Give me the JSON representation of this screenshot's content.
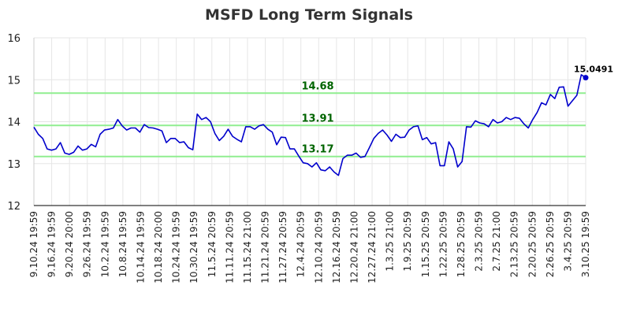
{
  "chart_data": {
    "type": "line",
    "title": "MSFD Long Term Signals",
    "ylim": [
      12,
      16
    ],
    "y_ticks": [
      "12",
      "13",
      "14",
      "15",
      "16"
    ],
    "x_tick_labels": [
      "9.10.24 19:59",
      "9.16.24 19:59",
      "9.20.24 20:00",
      "9.26.24 19:59",
      "10.2.24 19:59",
      "10.8.24 19:59",
      "10.14.24 19:59",
      "10.18.24 20:00",
      "10.24.24 19:59",
      "10.30.24 19:59",
      "11.5.24 20:59",
      "11.11.24 20:59",
      "11.15.24 21:00",
      "11.21.24 20:59",
      "11.27.24 20:59",
      "12.4.24 20:59",
      "12.10.24 20:59",
      "12.16.24 20:59",
      "12.20.24 21:00",
      "12.27.24 21:00",
      "1.3.25 21:00",
      "1.9.25 20:59",
      "1.15.25 20:59",
      "1.22.25 20:59",
      "1.28.25 20:59",
      "2.3.25 20:59",
      "2.7.25 21:00",
      "2.13.25 20:59",
      "2.20.25 20:59",
      "2.26.25 20:59",
      "3.4.25 20:59",
      "3.10.25 19:59"
    ],
    "grid": true,
    "line_color": "#0000cc",
    "signal_color": "#90ee90",
    "signal_label_color": "#006400",
    "signals": [
      {
        "value": 14.68,
        "label": "14.68"
      },
      {
        "value": 13.91,
        "label": "13.91"
      },
      {
        "value": 13.17,
        "label": "13.17"
      }
    ],
    "last_point": {
      "value": 15.0491,
      "label": "15.0491"
    },
    "series": [
      {
        "values": [
          13.87,
          13.7,
          13.6,
          13.35,
          13.32,
          13.35,
          13.5,
          13.25,
          13.22,
          13.27,
          13.42,
          13.32,
          13.35,
          13.46,
          13.4,
          13.7,
          13.8,
          13.82,
          13.85,
          14.05,
          13.9,
          13.8,
          13.85,
          13.85,
          13.75,
          13.93,
          13.86,
          13.85,
          13.82,
          13.78,
          13.5,
          13.6,
          13.6,
          13.5,
          13.52,
          13.38,
          13.33,
          14.18,
          14.05,
          14.1,
          14.0,
          13.72,
          13.55,
          13.65,
          13.82,
          13.65,
          13.58,
          13.52,
          13.88,
          13.88,
          13.82,
          13.9,
          13.93,
          13.82,
          13.75,
          13.45,
          13.63,
          13.62,
          13.35,
          13.35,
          13.18,
          13.02,
          13.0,
          12.92,
          13.02,
          12.85,
          12.83,
          12.92,
          12.8,
          12.72,
          13.12,
          13.2,
          13.2,
          13.25,
          13.15,
          13.17,
          13.38,
          13.6,
          13.72,
          13.8,
          13.68,
          13.53,
          13.7,
          13.62,
          13.63,
          13.8,
          13.88,
          13.9,
          13.57,
          13.62,
          13.47,
          13.5,
          12.95,
          12.95,
          13.52,
          13.35,
          12.92,
          13.05,
          13.88,
          13.87,
          14.02,
          13.97,
          13.95,
          13.88,
          14.05,
          13.97,
          14.0,
          14.1,
          14.05,
          14.1,
          14.08,
          13.95,
          13.85,
          14.05,
          14.22,
          14.45,
          14.4,
          14.65,
          14.55,
          14.82,
          14.83,
          14.37,
          14.5,
          14.63,
          15.12,
          15.0491
        ]
      }
    ]
  }
}
